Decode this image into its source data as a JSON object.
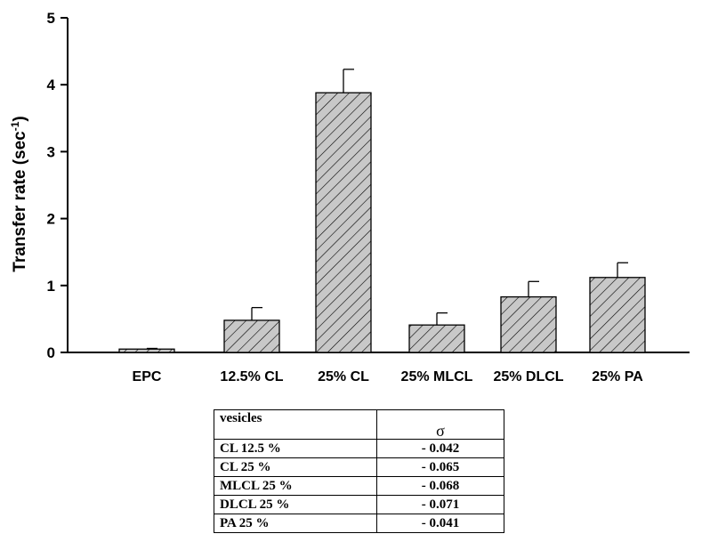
{
  "chart_data": {
    "type": "bar",
    "ylabel": "Transfer rate (sec",
    "ylabel_sup": "-1",
    "ylabel_close": ")",
    "ylim": [
      0,
      5
    ],
    "yticks": [
      "0",
      "1",
      "2",
      "3",
      "4",
      "5"
    ],
    "categories": [
      "EPC",
      "12.5% CL",
      "25% CL",
      "25% MLCL",
      "25% DLCL",
      "25% PA"
    ],
    "values": [
      0.05,
      0.48,
      3.88,
      0.41,
      0.83,
      1.12
    ],
    "errors": [
      0.01,
      0.19,
      0.35,
      0.18,
      0.23,
      0.22
    ],
    "bar_fill": "#c8c8c8",
    "hatch": "diagonal",
    "grid": false
  },
  "table": {
    "headers": [
      "vesicles",
      "σ"
    ],
    "rows": [
      [
        "CL 12.5 %",
        "- 0.042"
      ],
      [
        "CL 25 %",
        "- 0.065"
      ],
      [
        "MLCL 25 %",
        "- 0.068"
      ],
      [
        "DLCL 25 %",
        "- 0.071"
      ],
      [
        "PA 25 %",
        "- 0.041"
      ]
    ]
  }
}
